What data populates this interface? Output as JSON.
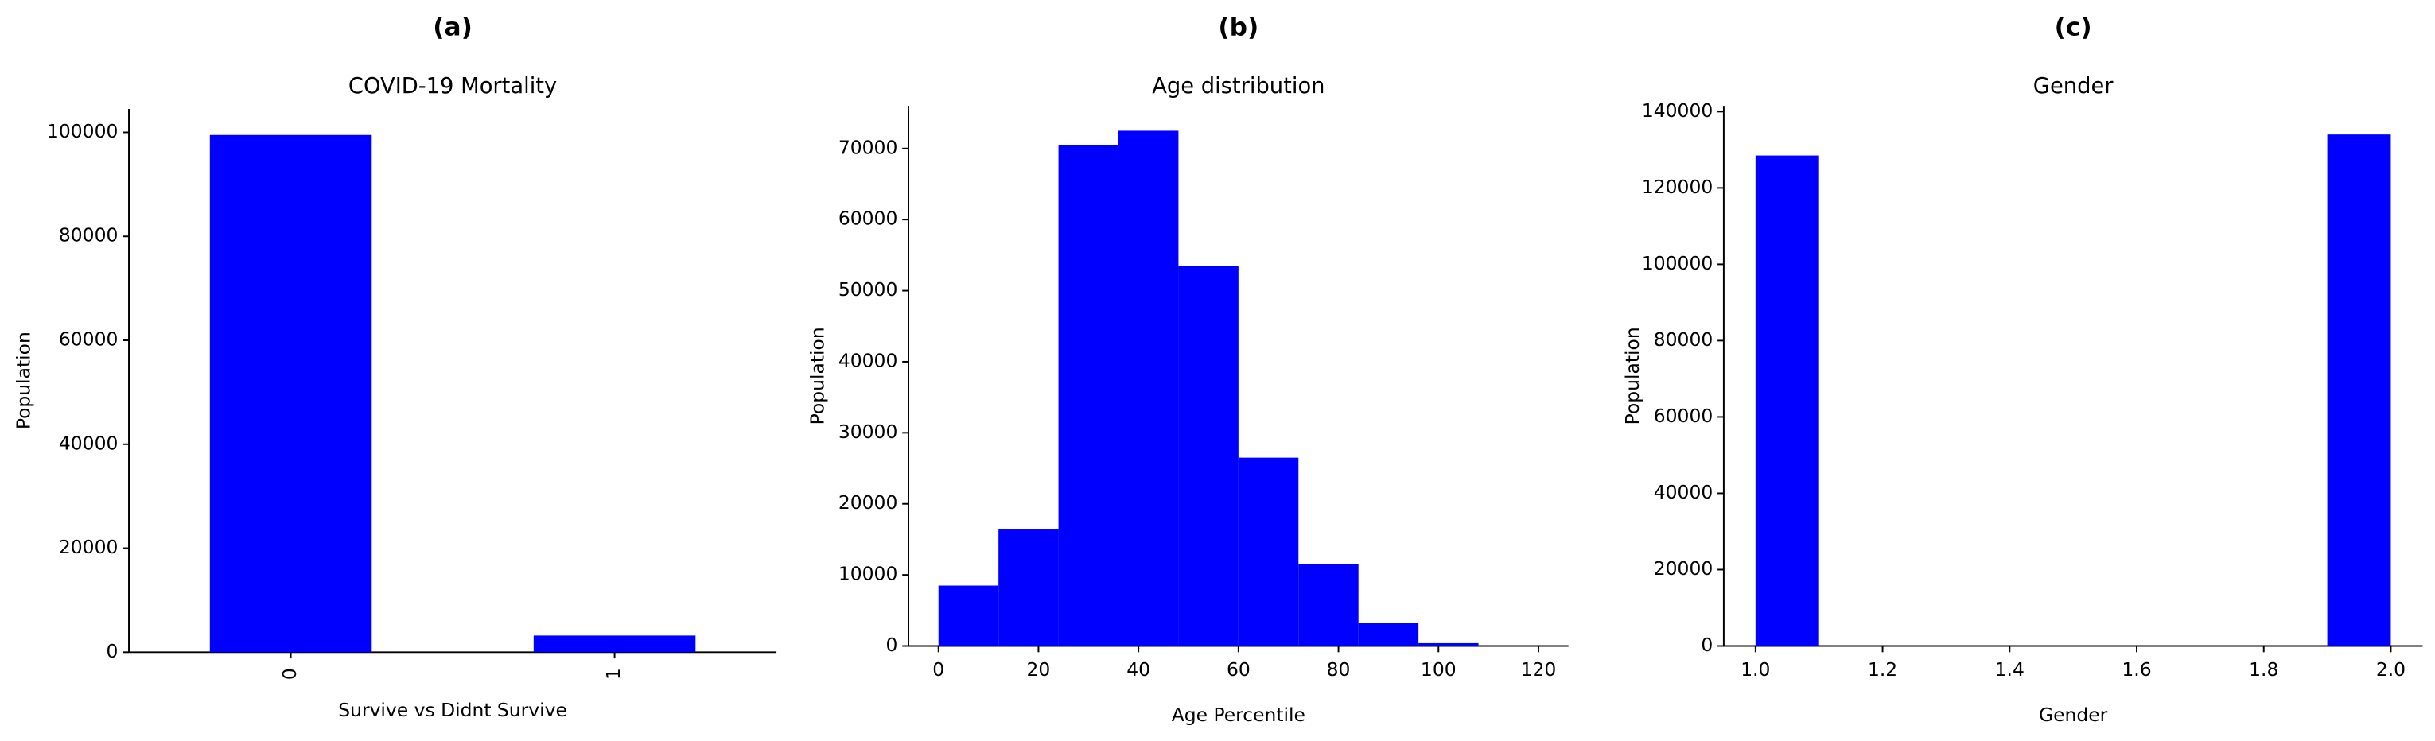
{
  "chart_data": [
    {
      "type": "bar",
      "header": "(a)",
      "title": "COVID-19 Mortality",
      "xlabel": "Survive vs Didnt Survive",
      "ylabel": "Population",
      "categories": [
        "0",
        "1"
      ],
      "values": [
        99500,
        3200
      ],
      "color": "#0000ff",
      "ylim": [
        0,
        104500
      ],
      "yticks": [
        0,
        20000,
        40000,
        60000,
        80000,
        100000
      ]
    },
    {
      "type": "histogram",
      "header": "(b)",
      "title": "Age distribution",
      "xlabel": "Age Percentile",
      "ylabel": "Population",
      "bins": [
        0,
        12,
        24,
        36,
        48,
        60,
        72,
        84,
        96,
        108,
        120
      ],
      "values": [
        8500,
        16500,
        70500,
        72500,
        53500,
        26500,
        11500,
        3300,
        400,
        50
      ],
      "color": "#0000ff",
      "xlim": [
        -6,
        126
      ],
      "xticks": [
        0,
        20,
        40,
        60,
        80,
        100,
        120
      ],
      "ylim": [
        0,
        76000
      ],
      "yticks": [
        0,
        10000,
        20000,
        30000,
        40000,
        50000,
        60000,
        70000
      ]
    },
    {
      "type": "histogram",
      "header": "(c)",
      "title": "Gender",
      "xlabel": "Gender",
      "ylabel": "Population",
      "bins": [
        1.0,
        1.1,
        1.2,
        1.3,
        1.4,
        1.5,
        1.6,
        1.7,
        1.8,
        1.9,
        2.0
      ],
      "values": [
        128500,
        0,
        0,
        0,
        0,
        0,
        0,
        0,
        0,
        134000
      ],
      "color": "#0000ff",
      "xlim": [
        0.95,
        2.05
      ],
      "xticks": [
        {
          "value": 1,
          "label": "1.0"
        },
        {
          "value": 1.2,
          "label": "1.2"
        },
        {
          "value": 1.4,
          "label": "1.4"
        },
        {
          "value": 1.6,
          "label": "1.6"
        },
        {
          "value": 1.8,
          "label": "1.8"
        },
        {
          "value": 2,
          "label": "2.0"
        }
      ],
      "ylim": [
        0,
        141500
      ],
      "yticks": [
        0,
        20000,
        40000,
        60000,
        80000,
        100000,
        120000,
        140000
      ]
    }
  ]
}
